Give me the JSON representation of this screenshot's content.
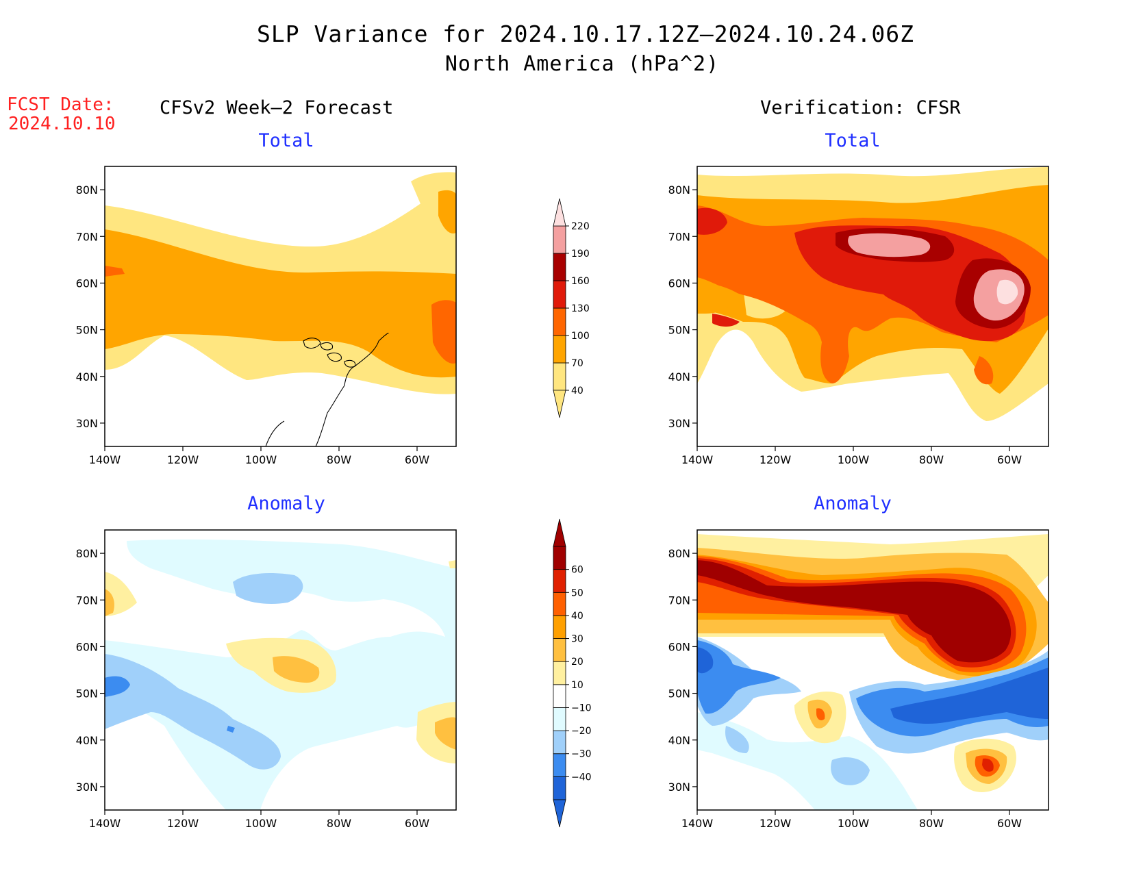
{
  "title": {
    "line1": "SLP Variance for 2024.10.17.12Z–2024.10.24.06Z",
    "line2": "North America (hPa^2)"
  },
  "forecast_date": {
    "label": "FCST Date:",
    "value": "2024.10.10"
  },
  "columns": {
    "left": "CFSv2 Week–2 Forecast",
    "right": "Verification: CFSR"
  },
  "panels": [
    {
      "id": "fcst-total",
      "subtitle": "Total"
    },
    {
      "id": "verif-total",
      "subtitle": "Total"
    },
    {
      "id": "fcst-anomaly",
      "subtitle": "Anomaly"
    },
    {
      "id": "verif-anomaly",
      "subtitle": "Anomaly"
    }
  ],
  "axes": {
    "lat_ticks": [
      "30N",
      "40N",
      "50N",
      "60N",
      "70N",
      "80N"
    ],
    "lon_ticks": [
      "140W",
      "120W",
      "100W",
      "80W",
      "60W"
    ],
    "lat_values": [
      30,
      40,
      50,
      60,
      70,
      80
    ],
    "lon_values": [
      -140,
      -120,
      -100,
      -80,
      -60
    ],
    "lat_range": [
      25,
      85
    ],
    "lon_range": [
      -140,
      -50
    ]
  },
  "colorbars": {
    "total": {
      "labels": [
        "40",
        "70",
        "100",
        "130",
        "160",
        "190",
        "220"
      ],
      "colors": [
        "#ffe680",
        "#ffa500",
        "#ff6600",
        "#e01a0a",
        "#a80000",
        "#f4a0a0",
        "#fde0e0"
      ]
    },
    "anomaly": {
      "labels": [
        "−40",
        "−30",
        "−20",
        "−10",
        "10",
        "20",
        "30",
        "40",
        "50",
        "60"
      ],
      "colors": [
        "#1f64d8",
        "#3c8cf0",
        "#a0d0fa",
        "#e0fbff",
        "#ffffff",
        "#fff0a0",
        "#ffc040",
        "#ffa000",
        "#ff6000",
        "#e02000",
        "#a00000"
      ]
    }
  }
}
